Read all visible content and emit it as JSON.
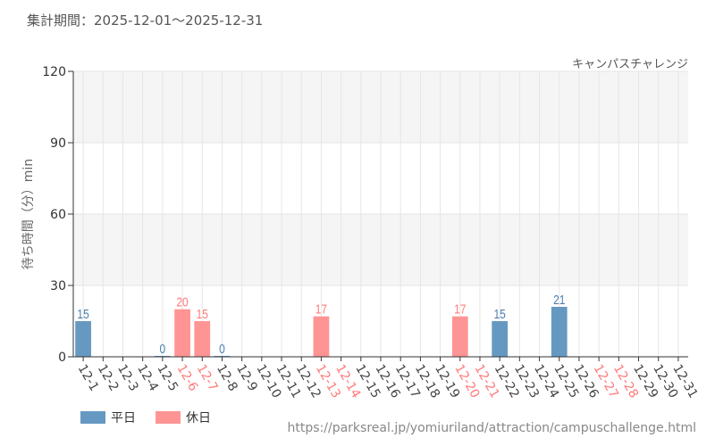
{
  "header": {
    "title": "集計期間：2025-12-01〜2025-12-31",
    "brand": "キャンパスチャレンジ"
  },
  "footer": {
    "url": "https://parksreal.jp/yomiuriland/attraction/campuschallenge.html"
  },
  "colors": {
    "weekday": "#6699c2",
    "holiday": "#ff9494",
    "weekday_text": "#4a7fb0",
    "holiday_text": "#ff7a7a",
    "axis_text": "#444"
  },
  "chart_data": {
    "type": "bar",
    "ylabel": "待ち時間（分）min",
    "ylim": [
      0,
      120
    ],
    "yticks": [
      0,
      30,
      60,
      90,
      120
    ],
    "legend": [
      {
        "name": "平日",
        "key": "weekday"
      },
      {
        "name": "休日",
        "key": "holiday"
      }
    ],
    "legend_position": "bottom-left",
    "categories": [
      "12-1",
      "12-2",
      "12-3",
      "12-4",
      "12-5",
      "12-6",
      "12-7",
      "12-8",
      "12-9",
      "12-10",
      "12-11",
      "12-12",
      "12-13",
      "12-14",
      "12-15",
      "12-16",
      "12-17",
      "12-18",
      "12-19",
      "12-20",
      "12-21",
      "12-22",
      "12-23",
      "12-24",
      "12-25",
      "12-26",
      "12-27",
      "12-28",
      "12-29",
      "12-30",
      "12-31"
    ],
    "holidays": [
      "12-6",
      "12-7",
      "12-13",
      "12-14",
      "12-20",
      "12-21",
      "12-27",
      "12-28"
    ],
    "values": [
      15,
      null,
      null,
      null,
      0,
      20,
      15,
      0,
      null,
      null,
      null,
      null,
      17,
      null,
      null,
      null,
      null,
      null,
      null,
      17,
      null,
      15,
      null,
      null,
      21,
      null,
      null,
      null,
      null,
      null,
      null
    ]
  }
}
